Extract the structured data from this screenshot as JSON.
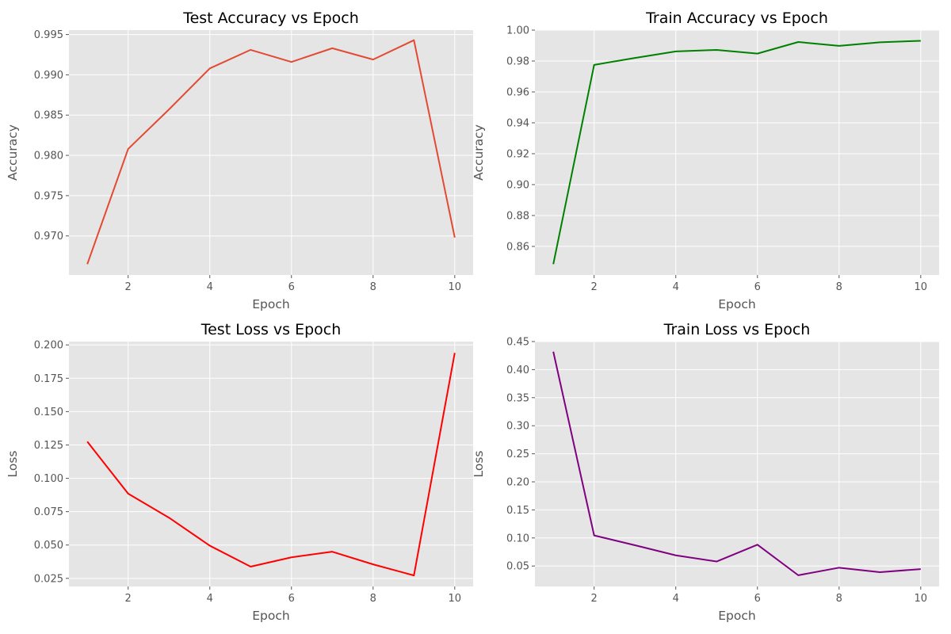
{
  "chart_data": [
    {
      "id": "test-accuracy",
      "type": "line",
      "title": "Test Accuracy vs Epoch",
      "xlabel": "Epoch",
      "ylabel": "Accuracy",
      "x": [
        1,
        2,
        3,
        4,
        5,
        6,
        7,
        8,
        9,
        10
      ],
      "series": [
        {
          "values": [
            0.9665,
            0.9808,
            0.9857,
            0.9908,
            0.9931,
            0.9916,
            0.9933,
            0.9919,
            0.9943,
            0.9698
          ],
          "color": "#e24a33"
        }
      ],
      "xlim": [
        0.55,
        10.45
      ],
      "ylim": [
        0.96515,
        0.99555
      ],
      "xticks": [
        2,
        4,
        6,
        8,
        10
      ],
      "yticks": [
        0.97,
        0.975,
        0.98,
        0.985,
        0.99,
        0.995
      ],
      "ytick_decimals": 3,
      "grid": true
    },
    {
      "id": "train-accuracy",
      "type": "line",
      "title": "Train Accuracy vs Epoch",
      "xlabel": "Epoch",
      "ylabel": "Accuracy",
      "x": [
        1,
        2,
        3,
        4,
        5,
        6,
        7,
        8,
        9,
        10
      ],
      "series": [
        {
          "values": [
            0.8485,
            0.9775,
            0.982,
            0.9862,
            0.9872,
            0.9848,
            0.9923,
            0.9898,
            0.9921,
            0.9931
          ],
          "color": "#008000"
        }
      ],
      "xlim": [
        0.55,
        10.45
      ],
      "ylim": [
        0.8415,
        1.0
      ],
      "xticks": [
        2,
        4,
        6,
        8,
        10
      ],
      "yticks": [
        0.86,
        0.88,
        0.9,
        0.92,
        0.94,
        0.96,
        0.98,
        1.0
      ],
      "ytick_decimals": 2,
      "grid": true
    },
    {
      "id": "test-loss",
      "type": "line",
      "title": "Test Loss vs Epoch",
      "xlabel": "Epoch",
      "ylabel": "Loss",
      "x": [
        1,
        2,
        3,
        4,
        5,
        6,
        7,
        8,
        9,
        10
      ],
      "series": [
        {
          "values": [
            0.1275,
            0.0885,
            0.0705,
            0.0495,
            0.0338,
            0.0408,
            0.045,
            0.0355,
            0.0272,
            0.194
          ],
          "color": "#ff0000"
        }
      ],
      "xlim": [
        0.55,
        10.45
      ],
      "ylim": [
        0.01895,
        0.2025
      ],
      "xticks": [
        2,
        4,
        6,
        8,
        10
      ],
      "yticks": [
        0.025,
        0.05,
        0.075,
        0.1,
        0.125,
        0.15,
        0.175,
        0.2
      ],
      "ytick_decimals": 3,
      "grid": true
    },
    {
      "id": "train-loss",
      "type": "line",
      "title": "Train Loss vs Epoch",
      "xlabel": "Epoch",
      "ylabel": "Loss",
      "x": [
        1,
        2,
        3,
        4,
        5,
        6,
        7,
        8,
        9,
        10
      ],
      "series": [
        {
          "values": [
            0.432,
            0.1045,
            0.087,
            0.069,
            0.058,
            0.088,
            0.0335,
            0.047,
            0.039,
            0.0445
          ],
          "color": "#800080"
        }
      ],
      "xlim": [
        0.55,
        10.45
      ],
      "ylim": [
        0.01355,
        0.45
      ],
      "xticks": [
        2,
        4,
        6,
        8,
        10
      ],
      "yticks": [
        0.05,
        0.1,
        0.15,
        0.2,
        0.25,
        0.3,
        0.35,
        0.4,
        0.45
      ],
      "ytick_decimals": 2,
      "grid": true
    }
  ]
}
